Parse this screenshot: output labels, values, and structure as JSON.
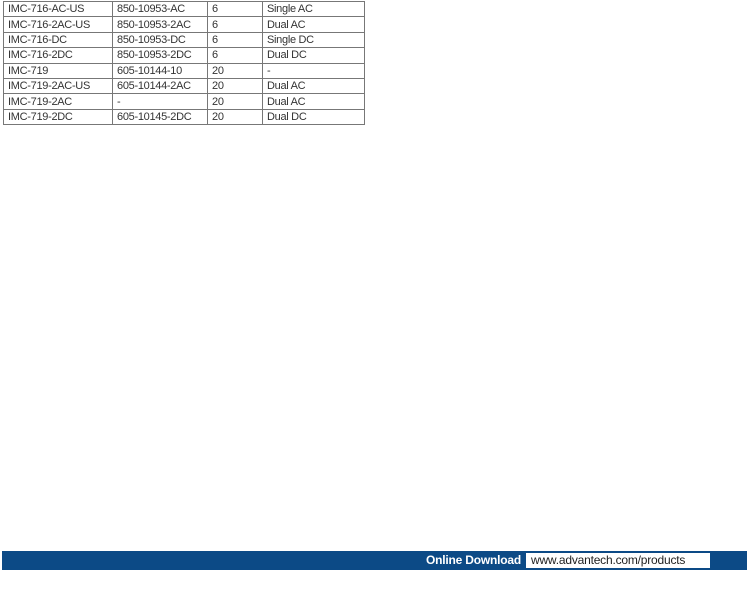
{
  "table": {
    "rows": [
      [
        "IMC-716-AC-US",
        "850-10953-AC",
        "6",
        "Single AC"
      ],
      [
        "IMC-716-2AC-US",
        "850-10953-2AC",
        "6",
        "Dual AC"
      ],
      [
        "IMC-716-DC",
        "850-10953-DC",
        "6",
        "Single DC"
      ],
      [
        "IMC-716-2DC",
        "850-10953-2DC",
        "6",
        "Dual DC"
      ],
      [
        "IMC-719",
        "605-10144-10",
        "20",
        "-"
      ],
      [
        "IMC-719-2AC-US",
        "605-10144-2AC",
        "20",
        "Dual AC"
      ],
      [
        "IMC-719-2AC",
        "-",
        "20",
        "Dual AC"
      ],
      [
        "IMC-719-2DC",
        "605-10145-2DC",
        "20",
        "Dual DC"
      ]
    ]
  },
  "footer": {
    "label": "Online Download",
    "url": "www.advantech.com/products",
    "bar_color": "#0c4a86"
  }
}
